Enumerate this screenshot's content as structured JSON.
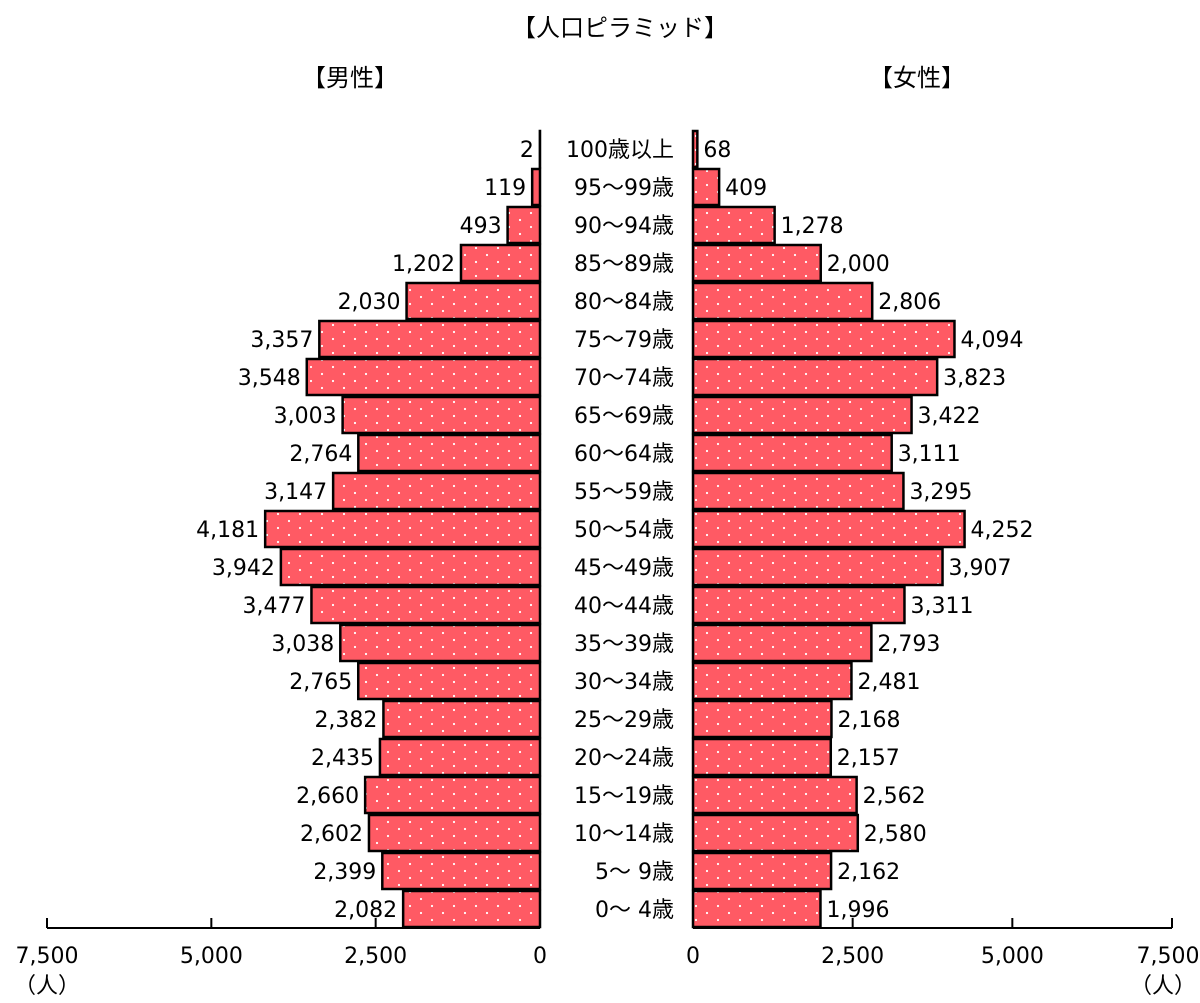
{
  "chart_data": {
    "type": "bar",
    "title": "【人口ピラミッド】",
    "left_label": "【男性】",
    "right_label": "【女性】",
    "orientation": "horizontal",
    "categories": [
      "100歳以上",
      "95～99歳",
      "90～94歳",
      "85～89歳",
      "80～84歳",
      "75～79歳",
      "70～74歳",
      "65～69歳",
      "60～64歳",
      "55～59歳",
      "50～54歳",
      "45～49歳",
      "40～44歳",
      "35～39歳",
      "30～34歳",
      "25～29歳",
      "20～24歳",
      "15～19歳",
      "10～14歳",
      "5～ 9歳",
      "0～ 4歳"
    ],
    "series": [
      {
        "name": "【男性】",
        "values": [
          2,
          119,
          493,
          1202,
          2030,
          3357,
          3548,
          3003,
          2764,
          3147,
          4181,
          3942,
          3477,
          3038,
          2765,
          2382,
          2435,
          2660,
          2602,
          2399,
          2082
        ],
        "labels": [
          "2",
          "119",
          "493",
          "1,202",
          "2,030",
          "3,357",
          "3,548",
          "3,003",
          "2,764",
          "3,147",
          "4,181",
          "3,942",
          "3,477",
          "3,038",
          "2,765",
          "2,382",
          "2,435",
          "2,660",
          "2,602",
          "2,399",
          "2,082"
        ]
      },
      {
        "name": "【女性】",
        "values": [
          68,
          409,
          1278,
          2000,
          2806,
          4094,
          3823,
          3422,
          3111,
          3295,
          4252,
          3907,
          3311,
          2793,
          2481,
          2168,
          2157,
          2562,
          2580,
          2162,
          1996
        ],
        "labels": [
          "68",
          "409",
          "1,278",
          "2,000",
          "2,806",
          "4,094",
          "3,823",
          "3,422",
          "3,111",
          "3,295",
          "4,252",
          "3,907",
          "3,311",
          "2,793",
          "2,481",
          "2,168",
          "2,157",
          "2,562",
          "2,580",
          "2,162",
          "1,996"
        ]
      }
    ],
    "xlim": [
      0,
      7500
    ],
    "left_ticks": [
      "7,500",
      "5,000",
      "2,500",
      "0"
    ],
    "right_ticks": [
      "0",
      "2,500",
      "5,000",
      "7,500"
    ],
    "tick_values": [
      7500,
      5000,
      2500,
      0
    ],
    "unit_label": "（人）",
    "bar_color": "#ff5a64",
    "dot_color": "#ffffff"
  }
}
